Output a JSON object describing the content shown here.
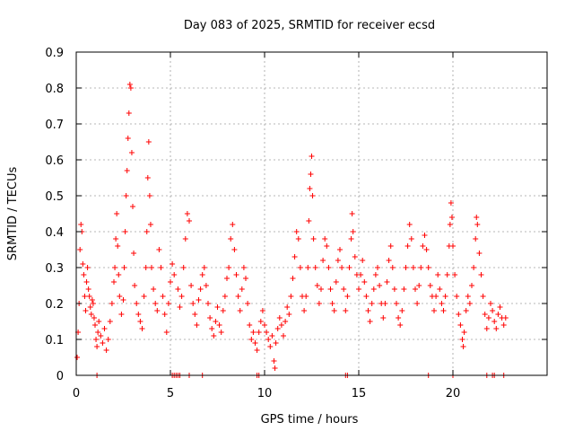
{
  "chart_data": {
    "type": "scatter",
    "title": "Day 083 of 2025, SRMTID for receiver ecsd",
    "xlabel": "GPS time / hours",
    "ylabel": "SRMTID / TECUs",
    "xlim": [
      0,
      25
    ],
    "ylim": [
      0,
      0.9
    ],
    "xticks": [
      0,
      5,
      10,
      15,
      20
    ],
    "yticks": [
      0,
      0.1,
      0.2,
      0.3,
      0.4,
      0.5,
      0.6,
      0.7,
      0.8,
      0.9
    ],
    "grid": true,
    "marker": "+",
    "color": "#ff0000",
    "series": [
      {
        "name": "SRMTID",
        "points": [
          [
            0.05,
            0.05
          ],
          [
            0.1,
            0.12
          ],
          [
            0.15,
            0.2
          ],
          [
            0.2,
            0.35
          ],
          [
            0.25,
            0.42
          ],
          [
            0.3,
            0.4
          ],
          [
            0.35,
            0.31
          ],
          [
            0.4,
            0.28
          ],
          [
            0.45,
            0.22
          ],
          [
            0.5,
            0.18
          ],
          [
            0.55,
            0.26
          ],
          [
            0.6,
            0.3
          ],
          [
            0.65,
            0.24
          ],
          [
            0.7,
            0.22
          ],
          [
            0.75,
            0.19
          ],
          [
            0.8,
            0.17
          ],
          [
            0.85,
            0.21
          ],
          [
            0.9,
            0.2
          ],
          [
            0.95,
            0.16
          ],
          [
            1.0,
            0.14
          ],
          [
            1.05,
            0.1
          ],
          [
            1.1,
            0.08
          ],
          [
            1.15,
            0.12
          ],
          [
            1.2,
            0.15
          ],
          [
            1.3,
            0.11
          ],
          [
            1.4,
            0.09
          ],
          [
            1.5,
            0.13
          ],
          [
            1.6,
            0.07
          ],
          [
            1.7,
            0.1
          ],
          [
            1.8,
            0.15
          ],
          [
            1.9,
            0.2
          ],
          [
            2.0,
            0.26
          ],
          [
            2.05,
            0.3
          ],
          [
            2.1,
            0.38
          ],
          [
            2.15,
            0.45
          ],
          [
            2.2,
            0.36
          ],
          [
            2.25,
            0.28
          ],
          [
            2.3,
            0.22
          ],
          [
            2.4,
            0.17
          ],
          [
            2.5,
            0.21
          ],
          [
            2.55,
            0.3
          ],
          [
            2.6,
            0.4
          ],
          [
            2.65,
            0.5
          ],
          [
            2.7,
            0.57
          ],
          [
            2.75,
            0.66
          ],
          [
            2.8,
            0.73
          ],
          [
            2.85,
            0.81
          ],
          [
            2.9,
            0.8
          ],
          [
            2.95,
            0.62
          ],
          [
            3.0,
            0.47
          ],
          [
            3.05,
            0.34
          ],
          [
            3.1,
            0.25
          ],
          [
            3.2,
            0.2
          ],
          [
            3.3,
            0.17
          ],
          [
            3.4,
            0.15
          ],
          [
            3.5,
            0.13
          ],
          [
            3.6,
            0.22
          ],
          [
            3.7,
            0.3
          ],
          [
            3.75,
            0.4
          ],
          [
            3.8,
            0.55
          ],
          [
            3.85,
            0.65
          ],
          [
            3.9,
            0.5
          ],
          [
            3.95,
            0.42
          ],
          [
            4.0,
            0.3
          ],
          [
            4.1,
            0.24
          ],
          [
            4.2,
            0.2
          ],
          [
            4.3,
            0.18
          ],
          [
            4.4,
            0.35
          ],
          [
            4.5,
            0.3
          ],
          [
            4.6,
            0.22
          ],
          [
            4.7,
            0.17
          ],
          [
            4.8,
            0.12
          ],
          [
            4.9,
            0.2
          ],
          [
            5.0,
            0.26
          ],
          [
            5.1,
            0.31
          ],
          [
            5.2,
            0.28
          ],
          [
            5.4,
            0.24
          ],
          [
            5.5,
            0.19
          ],
          [
            5.6,
            0.22
          ],
          [
            5.7,
            0.3
          ],
          [
            5.8,
            0.38
          ],
          [
            5.9,
            0.45
          ],
          [
            6.0,
            0.43
          ],
          [
            6.1,
            0.25
          ],
          [
            6.2,
            0.2
          ],
          [
            6.3,
            0.17
          ],
          [
            6.4,
            0.14
          ],
          [
            6.5,
            0.21
          ],
          [
            6.6,
            0.24
          ],
          [
            6.7,
            0.28
          ],
          [
            6.8,
            0.3
          ],
          [
            6.9,
            0.25
          ],
          [
            7.0,
            0.2
          ],
          [
            7.1,
            0.16
          ],
          [
            7.2,
            0.13
          ],
          [
            7.3,
            0.11
          ],
          [
            7.4,
            0.15
          ],
          [
            7.5,
            0.19
          ],
          [
            7.6,
            0.14
          ],
          [
            7.7,
            0.12
          ],
          [
            7.8,
            0.18
          ],
          [
            7.9,
            0.22
          ],
          [
            8.0,
            0.27
          ],
          [
            8.1,
            0.3
          ],
          [
            8.2,
            0.38
          ],
          [
            8.3,
            0.42
          ],
          [
            8.4,
            0.35
          ],
          [
            8.5,
            0.28
          ],
          [
            8.6,
            0.22
          ],
          [
            8.7,
            0.18
          ],
          [
            8.8,
            0.24
          ],
          [
            8.9,
            0.3
          ],
          [
            9.0,
            0.27
          ],
          [
            9.1,
            0.2
          ],
          [
            9.2,
            0.14
          ],
          [
            9.3,
            0.1
          ],
          [
            9.4,
            0.12
          ],
          [
            9.5,
            0.09
          ],
          [
            9.6,
            0.07
          ],
          [
            9.7,
            0.12
          ],
          [
            9.8,
            0.15
          ],
          [
            9.9,
            0.18
          ],
          [
            10.0,
            0.14
          ],
          [
            10.1,
            0.12
          ],
          [
            10.2,
            0.1
          ],
          [
            10.3,
            0.08
          ],
          [
            10.4,
            0.11
          ],
          [
            10.5,
            0.04
          ],
          [
            10.55,
            0.02
          ],
          [
            10.6,
            0.09
          ],
          [
            10.7,
            0.13
          ],
          [
            10.8,
            0.16
          ],
          [
            10.9,
            0.14
          ],
          [
            11.0,
            0.11
          ],
          [
            11.1,
            0.15
          ],
          [
            11.2,
            0.19
          ],
          [
            11.3,
            0.17
          ],
          [
            11.4,
            0.22
          ],
          [
            11.5,
            0.27
          ],
          [
            11.6,
            0.33
          ],
          [
            11.7,
            0.4
          ],
          [
            11.8,
            0.38
          ],
          [
            11.9,
            0.3
          ],
          [
            12.0,
            0.22
          ],
          [
            12.1,
            0.18
          ],
          [
            12.2,
            0.22
          ],
          [
            12.3,
            0.3
          ],
          [
            12.35,
            0.43
          ],
          [
            12.4,
            0.52
          ],
          [
            12.45,
            0.56
          ],
          [
            12.5,
            0.61
          ],
          [
            12.55,
            0.5
          ],
          [
            12.6,
            0.38
          ],
          [
            12.7,
            0.3
          ],
          [
            12.8,
            0.25
          ],
          [
            12.9,
            0.2
          ],
          [
            13.0,
            0.24
          ],
          [
            13.1,
            0.32
          ],
          [
            13.2,
            0.38
          ],
          [
            13.3,
            0.36
          ],
          [
            13.4,
            0.3
          ],
          [
            13.5,
            0.24
          ],
          [
            13.6,
            0.2
          ],
          [
            13.7,
            0.18
          ],
          [
            13.8,
            0.26
          ],
          [
            13.9,
            0.32
          ],
          [
            14.0,
            0.35
          ],
          [
            14.1,
            0.3
          ],
          [
            14.2,
            0.24
          ],
          [
            14.3,
            0.18
          ],
          [
            14.4,
            0.22
          ],
          [
            14.5,
            0.3
          ],
          [
            14.6,
            0.38
          ],
          [
            14.65,
            0.45
          ],
          [
            14.7,
            0.4
          ],
          [
            14.8,
            0.33
          ],
          [
            14.9,
            0.28
          ],
          [
            15.0,
            0.24
          ],
          [
            15.1,
            0.28
          ],
          [
            15.2,
            0.32
          ],
          [
            15.3,
            0.26
          ],
          [
            15.4,
            0.22
          ],
          [
            15.5,
            0.18
          ],
          [
            15.6,
            0.15
          ],
          [
            15.7,
            0.2
          ],
          [
            15.8,
            0.24
          ],
          [
            15.9,
            0.28
          ],
          [
            16.0,
            0.3
          ],
          [
            16.1,
            0.25
          ],
          [
            16.2,
            0.2
          ],
          [
            16.3,
            0.16
          ],
          [
            16.4,
            0.2
          ],
          [
            16.5,
            0.26
          ],
          [
            16.6,
            0.32
          ],
          [
            16.7,
            0.36
          ],
          [
            16.8,
            0.3
          ],
          [
            16.9,
            0.24
          ],
          [
            17.0,
            0.2
          ],
          [
            17.1,
            0.16
          ],
          [
            17.2,
            0.14
          ],
          [
            17.3,
            0.18
          ],
          [
            17.4,
            0.24
          ],
          [
            17.5,
            0.3
          ],
          [
            17.6,
            0.36
          ],
          [
            17.7,
            0.42
          ],
          [
            17.8,
            0.38
          ],
          [
            17.9,
            0.3
          ],
          [
            18.0,
            0.24
          ],
          [
            18.1,
            0.2
          ],
          [
            18.2,
            0.25
          ],
          [
            18.3,
            0.3
          ],
          [
            18.4,
            0.36
          ],
          [
            18.5,
            0.39
          ],
          [
            18.6,
            0.35
          ],
          [
            18.7,
            0.3
          ],
          [
            18.8,
            0.25
          ],
          [
            18.9,
            0.22
          ],
          [
            19.0,
            0.18
          ],
          [
            19.1,
            0.22
          ],
          [
            19.2,
            0.28
          ],
          [
            19.3,
            0.24
          ],
          [
            19.4,
            0.2
          ],
          [
            19.5,
            0.18
          ],
          [
            19.6,
            0.22
          ],
          [
            19.7,
            0.28
          ],
          [
            19.8,
            0.36
          ],
          [
            19.85,
            0.42
          ],
          [
            19.9,
            0.48
          ],
          [
            19.95,
            0.44
          ],
          [
            20.0,
            0.36
          ],
          [
            20.1,
            0.28
          ],
          [
            20.2,
            0.22
          ],
          [
            20.3,
            0.17
          ],
          [
            20.4,
            0.14
          ],
          [
            20.5,
            0.1
          ],
          [
            20.55,
            0.08
          ],
          [
            20.6,
            0.12
          ],
          [
            20.7,
            0.18
          ],
          [
            20.8,
            0.22
          ],
          [
            20.9,
            0.2
          ],
          [
            21.0,
            0.25
          ],
          [
            21.1,
            0.3
          ],
          [
            21.2,
            0.38
          ],
          [
            21.25,
            0.44
          ],
          [
            21.3,
            0.42
          ],
          [
            21.4,
            0.34
          ],
          [
            21.5,
            0.28
          ],
          [
            21.6,
            0.22
          ],
          [
            21.7,
            0.17
          ],
          [
            21.8,
            0.13
          ],
          [
            21.9,
            0.16
          ],
          [
            22.0,
            0.2
          ],
          [
            22.1,
            0.18
          ],
          [
            22.2,
            0.15
          ],
          [
            22.3,
            0.13
          ],
          [
            22.4,
            0.17
          ],
          [
            22.5,
            0.19
          ],
          [
            22.6,
            0.16
          ],
          [
            22.7,
            0.14
          ],
          [
            22.8,
            0.16
          ]
        ],
        "zero_markers": [
          1.1,
          5.1,
          5.2,
          5.3,
          5.4,
          5.5,
          6.0,
          6.7,
          9.6,
          9.7,
          14.3,
          14.4,
          18.7,
          20.0,
          21.8,
          22.1,
          22.2,
          22.7
        ]
      }
    ]
  }
}
